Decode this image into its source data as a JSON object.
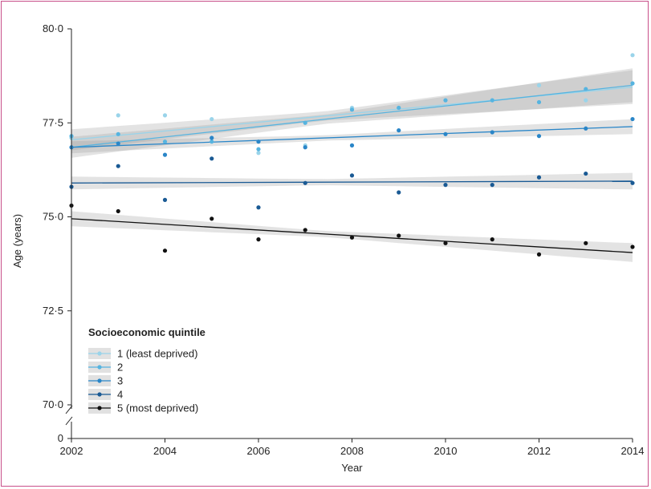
{
  "chart_data": {
    "type": "scatter",
    "xlabel": "Year",
    "ylabel": "Age (years)",
    "xlim": [
      2002,
      2014
    ],
    "ylim": [
      70.0,
      80.0
    ],
    "x_ticks": [
      "2002",
      "2004",
      "2006",
      "2008",
      "2010",
      "2012",
      "2014"
    ],
    "y_ticks": [
      "80·0",
      "77·5",
      "75·0",
      "72·5",
      "70·0",
      "0"
    ],
    "axis_break": true,
    "grid": false,
    "legend_title": "Socioeconomic quintile",
    "legend_position": "bottom-left",
    "x": [
      2002,
      2003,
      2004,
      2005,
      2006,
      2007,
      2008,
      2009,
      2010,
      2011,
      2012,
      2013,
      2014
    ],
    "series": [
      {
        "name": "1 (least deprived)",
        "color": "#9ad4ea",
        "values": [
          77.1,
          77.7,
          77.7,
          77.6,
          76.7,
          76.9,
          77.9,
          77.9,
          78.1,
          78.1,
          78.5,
          78.1,
          79.3
        ],
        "fit": [
          77.05,
          78.45
        ]
      },
      {
        "name": "2",
        "color": "#56b4e0",
        "values": [
          77.15,
          77.2,
          77.0,
          77.0,
          76.8,
          77.5,
          77.85,
          77.9,
          78.1,
          78.1,
          78.05,
          78.4,
          78.55
        ],
        "fit": [
          76.85,
          78.5
        ]
      },
      {
        "name": "3",
        "color": "#2a86c8",
        "values": [
          76.85,
          76.95,
          76.65,
          77.1,
          77.0,
          76.85,
          76.9,
          77.3,
          77.2,
          77.25,
          77.15,
          77.35,
          77.6
        ],
        "fit": [
          76.85,
          77.4
        ]
      },
      {
        "name": "4",
        "color": "#1a5a94",
        "values": [
          75.8,
          76.35,
          75.45,
          76.55,
          75.25,
          75.9,
          76.1,
          75.65,
          75.85,
          75.85,
          76.05,
          76.15,
          75.9
        ],
        "fit": [
          75.9,
          75.95
        ]
      },
      {
        "name": "5 (most deprived)",
        "color": "#111111",
        "values": [
          75.3,
          75.15,
          74.1,
          74.95,
          74.4,
          74.65,
          74.45,
          74.5,
          74.3,
          74.4,
          74.0,
          74.3,
          74.2
        ],
        "fit": [
          74.95,
          74.05
        ]
      }
    ]
  }
}
